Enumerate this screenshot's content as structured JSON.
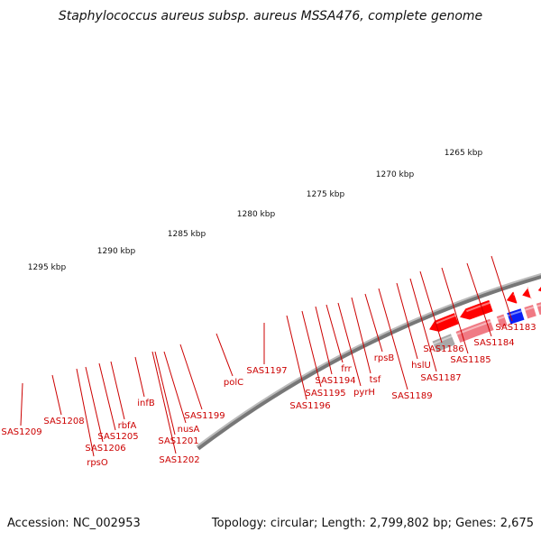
{
  "title": "Staphylococcus aureus subsp. aureus MSSA476, complete genome",
  "accession": "Accession: NC_002953",
  "topology": "Topology: circular; Length: 2,799,802 bp; Genes: 2,675",
  "colors": {
    "backbone": "#777777",
    "major_tick": "#1a7a1a",
    "minor_tick": "#1a7a1a",
    "label": "#cc0000",
    "gene_red": "#ff0000",
    "gene_pink": "#f07a84",
    "gene_magenta": "#ff1493",
    "gene_gray": "#a8a8a8"
  },
  "tick_labels": [
    "1265 kbp",
    "1270 kbp",
    "1275 kbp",
    "1280 kbp",
    "1285 kbp",
    "1290 kbp",
    "1295 kbp"
  ],
  "gene_labels": [
    "SAS1183",
    "SAS1184",
    "SAS1185",
    "SAS1186",
    "SAS1187",
    "hslU",
    "SAS1189",
    "rpsB",
    "tsf",
    "pyrH",
    "frr",
    "SAS1194",
    "SAS1195",
    "SAS1196",
    "SAS1197",
    "polC",
    "SAS1199",
    "nusA",
    "SAS1201",
    "SAS1202",
    "infB",
    "rbfA",
    "SAS1205",
    "SAS1206",
    "rpsO",
    "SAS1208",
    "SAS1209"
  ]
}
